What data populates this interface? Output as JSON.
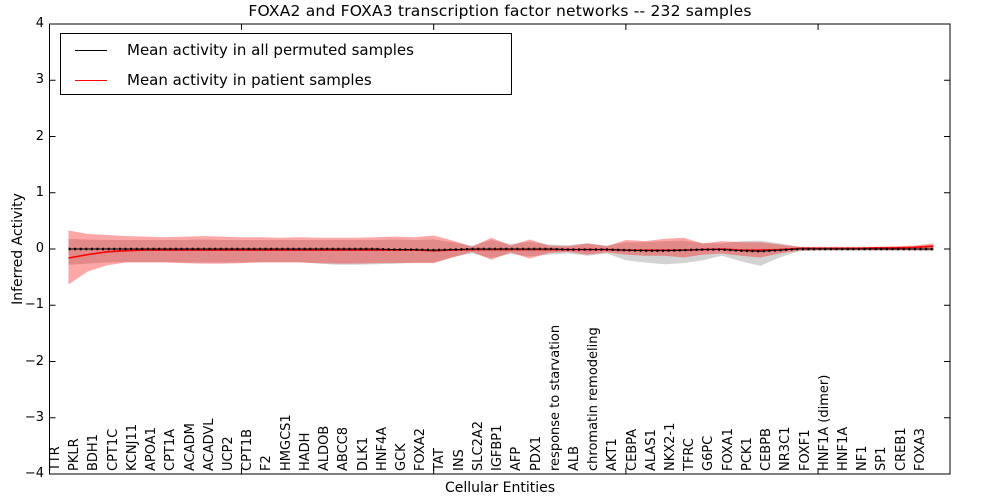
{
  "title": "FOXA2 and FOXA3 transcription factor networks -- 232 samples",
  "legend": {
    "items": [
      {
        "label": "Mean activity in all permuted samples",
        "color": "#000000"
      },
      {
        "label": "Mean activity in patient samples",
        "color": "#ff0000"
      }
    ]
  },
  "axes": {
    "ylabel": "Inferred Activity",
    "xlabel": "Cellular Entities",
    "y_tick_labels": [
      "4",
      "3",
      "2",
      "1",
      "0",
      "−1",
      "−2",
      "−3",
      "−4"
    ],
    "y_tick_values": [
      4,
      3,
      2,
      1,
      0,
      -1,
      -2,
      -3,
      -4
    ]
  },
  "chart_data": {
    "type": "line",
    "title": "FOXA2 and FOXA3 transcription factor networks -- 232 samples",
    "xlabel": "Cellular Entities",
    "ylabel": "Inferred Activity",
    "ylim": [
      -4,
      4
    ],
    "grid": false,
    "legend_position": "upper left",
    "sample_count": 232,
    "categories": [
      "TTR",
      "PKLR",
      "BDH1",
      "CPT1C",
      "KCNJ11",
      "APOA1",
      "CPT1A",
      "ACADM",
      "ACADVL",
      "UCP2",
      "CPT1B",
      "F2",
      "HMGCS1",
      "HADH",
      "ALDOB",
      "ABCC8",
      "DLK1",
      "HNF4A",
      "GCK",
      "FOXA2",
      "TAT",
      "INS",
      "SLC2A2",
      "IGFBP1",
      "AFP",
      "PDX1",
      "response to starvation",
      "ALB",
      "chromatin remodeling",
      "AKT1",
      "CEBPA",
      "ALAS1",
      "NKX2-1",
      "TFRC",
      "G6PC",
      "FOXA1",
      "PCK1",
      "CEBPB",
      "NR3C1",
      "FOXF1",
      "HNF1A (dimer)",
      "HNF1A",
      "NF1",
      "SP1",
      "CREB1",
      "FOXA3"
    ],
    "x_major_tick_indices": [
      9,
      19,
      29,
      39
    ],
    "series": [
      {
        "name": "Mean activity in all permuted samples",
        "color": "#000000",
        "style": "dotted-markers",
        "values": [
          0,
          0,
          0,
          0,
          0,
          0,
          0,
          0,
          0,
          0,
          0,
          0,
          0,
          0,
          0,
          0,
          0,
          -0.01,
          -0.01,
          -0.02,
          -0.01,
          0,
          0,
          0,
          0,
          0,
          -0.01,
          -0.01,
          -0.01,
          -0.02,
          -0.03,
          -0.03,
          -0.02,
          -0.01,
          -0.01,
          -0.03,
          -0.04,
          -0.02,
          0,
          0,
          0,
          0,
          0,
          0,
          0,
          0
        ]
      },
      {
        "name": "Mean activity in patient samples",
        "color": "#ff0000",
        "style": "solid",
        "values": [
          -0.16,
          -0.1,
          -0.05,
          -0.03,
          -0.02,
          -0.02,
          -0.02,
          -0.02,
          -0.02,
          -0.02,
          -0.02,
          -0.02,
          -0.02,
          -0.02,
          -0.02,
          -0.02,
          -0.02,
          -0.02,
          -0.02,
          -0.03,
          -0.02,
          -0.01,
          -0.01,
          -0.01,
          -0.01,
          -0.01,
          -0.01,
          -0.01,
          -0.01,
          -0.02,
          -0.02,
          -0.02,
          -0.02,
          -0.01,
          0,
          -0.02,
          -0.02,
          -0.01,
          0.01,
          0.01,
          0.01,
          0.01,
          0.02,
          0.02,
          0.03,
          0.05
        ]
      }
    ],
    "bands": [
      {
        "name": "permuted-samples-range",
        "color": "rgba(128,128,128,0.35)",
        "upper": [
          0.18,
          0.17,
          0.16,
          0.16,
          0.16,
          0.16,
          0.16,
          0.17,
          0.16,
          0.16,
          0.16,
          0.16,
          0.16,
          0.16,
          0.16,
          0.16,
          0.16,
          0.17,
          0.16,
          0.17,
          0.12,
          0.06,
          0.16,
          0.09,
          0.13,
          0.08,
          0.07,
          0.1,
          0.06,
          0.12,
          0.12,
          0.14,
          0.15,
          0.1,
          0.1,
          0.14,
          0.15,
          0.1,
          0.04,
          0.03,
          0.03,
          0.03,
          0.03,
          0.03,
          0.03,
          0.04
        ],
        "lower": [
          -0.28,
          -0.26,
          -0.24,
          -0.23,
          -0.23,
          -0.23,
          -0.24,
          -0.24,
          -0.24,
          -0.24,
          -0.23,
          -0.23,
          -0.23,
          -0.26,
          -0.28,
          -0.28,
          -0.27,
          -0.26,
          -0.24,
          -0.24,
          -0.14,
          -0.08,
          -0.16,
          -0.09,
          -0.13,
          -0.1,
          -0.08,
          -0.12,
          -0.08,
          -0.2,
          -0.24,
          -0.27,
          -0.25,
          -0.2,
          -0.12,
          -0.22,
          -0.3,
          -0.15,
          -0.04,
          -0.03,
          -0.03,
          -0.03,
          -0.03,
          -0.03,
          -0.03,
          -0.04
        ]
      },
      {
        "name": "patient-samples-range",
        "color": "rgba(255,0,0,0.35)",
        "upper": [
          0.33,
          0.27,
          0.25,
          0.23,
          0.22,
          0.21,
          0.22,
          0.23,
          0.22,
          0.21,
          0.21,
          0.2,
          0.21,
          0.2,
          0.2,
          0.2,
          0.21,
          0.22,
          0.21,
          0.24,
          0.15,
          0.04,
          0.2,
          0.06,
          0.17,
          0.06,
          0.05,
          0.1,
          0.05,
          0.16,
          0.14,
          0.18,
          0.2,
          0.1,
          0.14,
          0.12,
          0.12,
          0.08,
          0.04,
          0.04,
          0.04,
          0.04,
          0.04,
          0.05,
          0.06,
          0.1
        ],
        "lower": [
          -0.63,
          -0.4,
          -0.29,
          -0.24,
          -0.24,
          -0.24,
          -0.25,
          -0.26,
          -0.26,
          -0.25,
          -0.24,
          -0.24,
          -0.24,
          -0.25,
          -0.26,
          -0.26,
          -0.25,
          -0.25,
          -0.25,
          -0.25,
          -0.15,
          -0.05,
          -0.19,
          -0.06,
          -0.17,
          -0.07,
          -0.05,
          -0.1,
          -0.06,
          -0.1,
          -0.12,
          -0.12,
          -0.15,
          -0.1,
          -0.08,
          -0.12,
          -0.15,
          -0.08,
          -0.03,
          -0.02,
          -0.02,
          -0.02,
          -0.02,
          -0.02,
          -0.02,
          -0.02
        ]
      }
    ]
  }
}
